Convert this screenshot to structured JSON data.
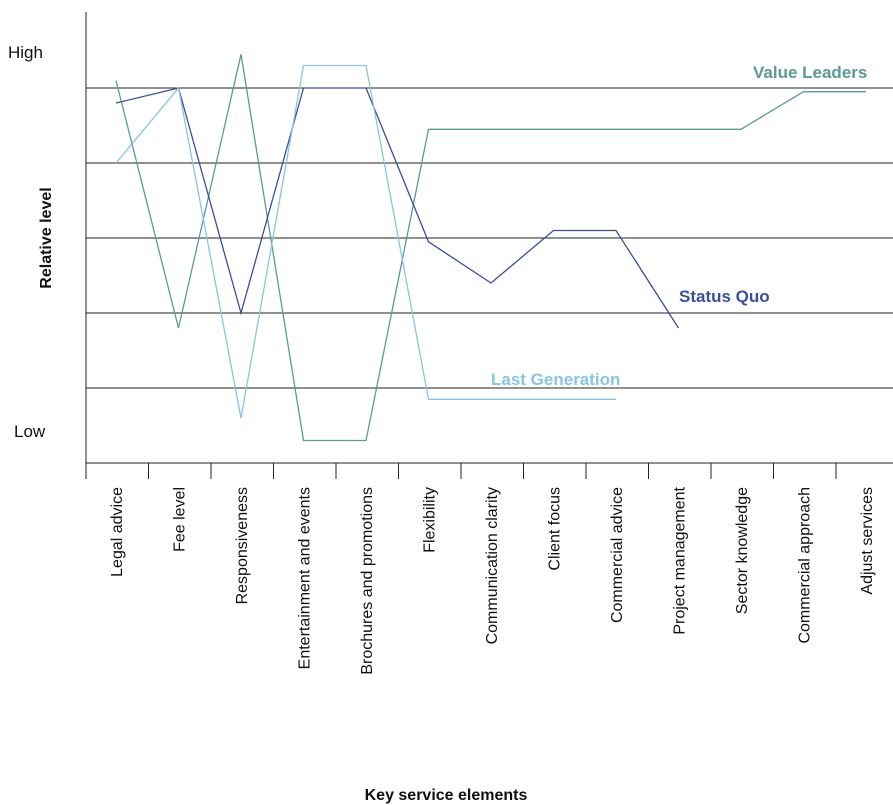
{
  "chart_data": {
    "type": "line",
    "xlabel": "Key service elements",
    "ylabel": "Relative level",
    "y_tick_labels": {
      "high": "High",
      "low": "Low"
    },
    "ylim": [
      0,
      6
    ],
    "grid": true,
    "categories": [
      "Legal advice",
      "Fee level",
      "Responsiveness",
      "Entertainment and events",
      "Brochures and promotions",
      "Flexibility",
      "Communication clarity",
      "Client focus",
      "Commercial advice",
      "Project management",
      "Sector knowledge",
      "Commercial approach",
      "Adjust services"
    ],
    "series": [
      {
        "name": "Value Leaders",
        "color": "#5a9a96",
        "values": [
          5.1,
          1.8,
          5.45,
          0.3,
          0.3,
          4.45,
          4.45,
          4.45,
          4.45,
          4.45,
          4.45,
          4.95,
          4.95
        ]
      },
      {
        "name": "Status Quo",
        "color": "#3a4f9c",
        "values": [
          4.8,
          5.0,
          2.0,
          5.0,
          5.0,
          2.95,
          2.4,
          3.1,
          3.1,
          1.8,
          null,
          null,
          null
        ]
      },
      {
        "name": "Last Generation",
        "color": "#87c4e6",
        "values": [
          4.0,
          5.0,
          0.6,
          5.3,
          5.3,
          0.85,
          0.85,
          0.85,
          0.85,
          null,
          null,
          null,
          null
        ]
      }
    ]
  }
}
